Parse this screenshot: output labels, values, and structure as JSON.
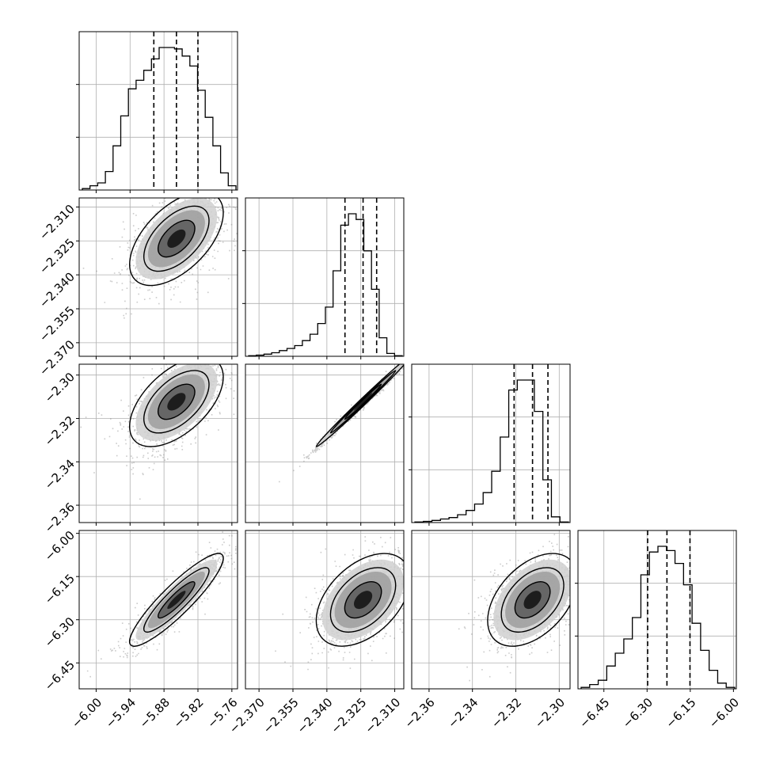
{
  "chart_data": {
    "type": "corner",
    "title": "",
    "parameters": [
      {
        "index": 0,
        "range": [
          -6.03,
          -5.75
        ],
        "ticks": [
          -6.0,
          -5.94,
          -5.88,
          -5.82,
          -5.76
        ],
        "tick_labels": [
          "−6.00",
          "−5.94",
          "−5.88",
          "−5.82",
          "−5.76"
        ]
      },
      {
        "index": 1,
        "range": [
          -2.376,
          -2.306
        ],
        "ticks": [
          -2.37,
          -2.355,
          -2.34,
          -2.325,
          -2.31
        ],
        "tick_labels": [
          "−2.370",
          "−2.355",
          "−2.340",
          "−2.325",
          "−2.310"
        ]
      },
      {
        "index": 2,
        "range": [
          -2.368,
          -2.295
        ],
        "ticks": [
          -2.36,
          -2.34,
          -2.32,
          -2.3
        ],
        "tick_labels": [
          "−2.36",
          "−2.34",
          "−2.32",
          "−2.30"
        ]
      },
      {
        "index": 3,
        "range": [
          -6.54,
          -5.99
        ],
        "ticks": [
          -6.45,
          -6.3,
          -6.15,
          -6.0
        ],
        "tick_labels": [
          "−6.45",
          "−6.30",
          "−6.15",
          "−6.00"
        ]
      }
    ],
    "histograms": [
      {
        "param": 0,
        "quantiles": [
          -5.898,
          -5.858,
          -5.82
        ],
        "counts": [
          0.01,
          0.03,
          0.05,
          0.13,
          0.31,
          0.52,
          0.71,
          0.77,
          0.84,
          0.92,
          1.0,
          1.0,
          0.99,
          0.94,
          0.87,
          0.7,
          0.51,
          0.31,
          0.12,
          0.03
        ]
      },
      {
        "param": 1,
        "quantiles": [
          -2.332,
          -2.324,
          -2.318
        ],
        "counts": [
          0.004,
          0.008,
          0.015,
          0.025,
          0.04,
          0.055,
          0.075,
          0.11,
          0.155,
          0.23,
          0.345,
          0.6,
          0.92,
          1.0,
          0.96,
          0.74,
          0.47,
          0.13,
          0.02,
          0.004
        ]
      },
      {
        "param": 2,
        "quantiles": [
          -2.3208,
          -2.3123,
          -2.3052
        ],
        "counts": [
          0.004,
          0.008,
          0.015,
          0.025,
          0.035,
          0.055,
          0.085,
          0.13,
          0.21,
          0.36,
          0.6,
          0.93,
          1.0,
          1.0,
          0.78,
          0.3,
          0.04,
          0.004
        ]
      },
      {
        "param": 3,
        "quantiles": [
          -6.298,
          -6.231,
          -6.151
        ],
        "counts": [
          0.01,
          0.03,
          0.06,
          0.16,
          0.25,
          0.35,
          0.5,
          0.8,
          0.96,
          1.0,
          0.97,
          0.88,
          0.73,
          0.46,
          0.27,
          0.13,
          0.04,
          0.01
        ]
      }
    ],
    "pairs": [
      {
        "x": 0,
        "y": 1,
        "mean": [
          -5.858,
          -2.324
        ],
        "sd": [
          0.036,
          0.009
        ],
        "corr": 0.55
      },
      {
        "x": 0,
        "y": 2,
        "mean": [
          -5.858,
          -2.3123
        ],
        "sd": [
          0.036,
          0.009
        ],
        "corr": 0.55
      },
      {
        "x": 1,
        "y": 2,
        "mean": [
          -2.324,
          -2.3123
        ],
        "sd": [
          0.009,
          0.009
        ],
        "corr": 0.995
      },
      {
        "x": 0,
        "y": 3,
        "mean": [
          -5.858,
          -6.231
        ],
        "sd": [
          0.036,
          0.07
        ],
        "corr": 0.9
      },
      {
        "x": 1,
        "y": 3,
        "mean": [
          -2.324,
          -6.231
        ],
        "sd": [
          0.009,
          0.07
        ],
        "corr": 0.45
      },
      {
        "x": 2,
        "y": 3,
        "mean": [
          -2.3123,
          -6.231
        ],
        "sd": [
          0.009,
          0.07
        ],
        "corr": 0.45
      }
    ],
    "grid": true,
    "legend": "none"
  }
}
